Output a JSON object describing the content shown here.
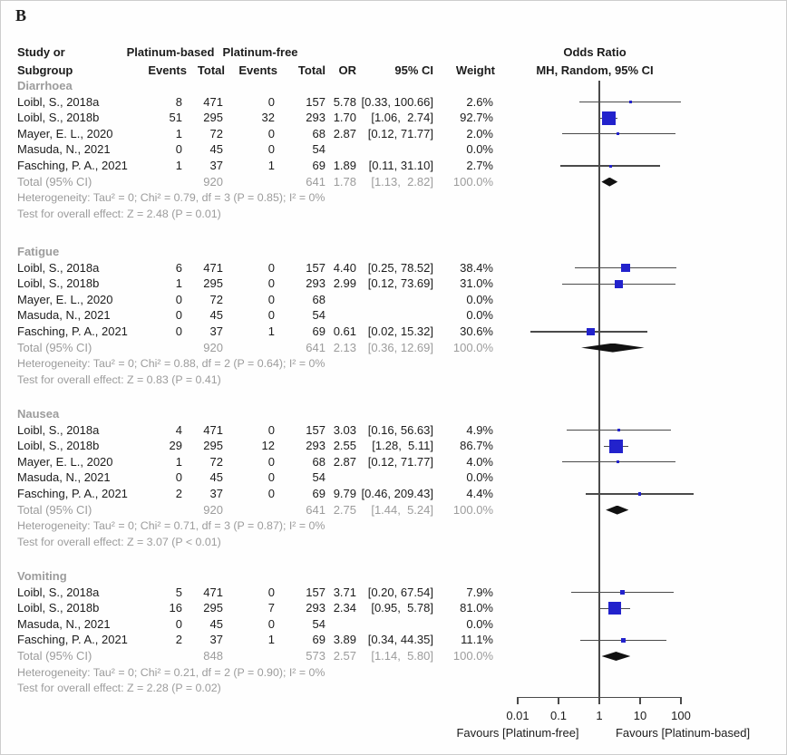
{
  "panel_label": "B",
  "table_header": {
    "study_or": "Study or",
    "subgroup": "Subgroup",
    "group_based": "Platinum-based",
    "group_free": "Platinum-free",
    "events": "Events",
    "total": "Total",
    "or": "OR",
    "ci": "95% CI",
    "weight": "Weight"
  },
  "plot_header": {
    "title": "Odds Ratio",
    "subtitle": "MH, Random, 95% CI"
  },
  "axis": {
    "tick_labels": [
      "0.01",
      "0.1",
      "1",
      "10",
      "100"
    ],
    "favours_left": "Favours [Platinum-free]",
    "favours_right": "Favours [Platinum-based]"
  },
  "colors": {
    "marker": "#2222CC",
    "summary_diamond": "#111111",
    "ci_line": "#4a4a4a",
    "muted_text": "#9C9C9C"
  },
  "chart_data": {
    "type": "forest",
    "effect_measure": "Odds Ratio (MH, Random, 95% CI)",
    "x_axis": {
      "scale": "log10",
      "ticks": [
        0.01,
        0.1,
        1,
        10,
        100
      ]
    },
    "sections": [
      {
        "name": "Diarrhoea",
        "rows": [
          {
            "study": "Loibl, S., 2018a",
            "events_based": "8",
            "total_based": "471",
            "events_free": "0",
            "total_free": "157",
            "or": 5.78,
            "ci_low": 0.33,
            "ci_high": 100.66,
            "or_text": "5.78",
            "ci_text": "[0.33, 100.66]",
            "weight": "2.6%",
            "weight_pct": 2.6
          },
          {
            "study": "Loibl, S., 2018b",
            "events_based": "51",
            "total_based": "295",
            "events_free": "32",
            "total_free": "293",
            "or": 1.7,
            "ci_low": 1.06,
            "ci_high": 2.74,
            "or_text": "1.70",
            "ci_text": "[1.06,  2.74]",
            "weight": "92.7%",
            "weight_pct": 92.7
          },
          {
            "study": "Mayer, E. L., 2020",
            "events_based": "1",
            "total_based": "72",
            "events_free": "0",
            "total_free": "68",
            "or": 2.87,
            "ci_low": 0.12,
            "ci_high": 71.77,
            "or_text": "2.87",
            "ci_text": "[0.12, 71.77]",
            "weight": "2.0%",
            "weight_pct": 2.0
          },
          {
            "study": "Masuda, N., 2021",
            "events_based": "0",
            "total_based": "45",
            "events_free": "0",
            "total_free": "54",
            "or": null,
            "ci_low": null,
            "ci_high": null,
            "or_text": "",
            "ci_text": "",
            "weight": "0.0%",
            "weight_pct": 0
          },
          {
            "study": "Fasching, P. A., 2021",
            "events_based": "1",
            "total_based": "37",
            "events_free": "1",
            "total_free": "69",
            "or": 1.89,
            "ci_low": 0.11,
            "ci_high": 31.1,
            "or_text": "1.89",
            "ci_text": "[0.11, 31.10]",
            "weight": "2.7%",
            "weight_pct": 2.7
          }
        ],
        "total": {
          "label": "Total (95% CI)",
          "total_based": "920",
          "total_free": "641",
          "or": 1.78,
          "ci_low": 1.13,
          "ci_high": 2.82,
          "or_text": "1.78",
          "ci_text": "[1.13,  2.82]",
          "weight": "100.0%"
        },
        "heterogeneity": "Heterogeneity: Tau² = 0; Chi² = 0.79, df = 3 (P = 0.85); I² = 0%",
        "overall_effect": "Test for overall effect: Z = 2.48 (P = 0.01)"
      },
      {
        "name": "Fatigue",
        "rows": [
          {
            "study": "Loibl, S., 2018a",
            "events_based": "6",
            "total_based": "471",
            "events_free": "0",
            "total_free": "157",
            "or": 4.4,
            "ci_low": 0.25,
            "ci_high": 78.52,
            "or_text": "4.40",
            "ci_text": "[0.25, 78.52]",
            "weight": "38.4%",
            "weight_pct": 38.4
          },
          {
            "study": "Loibl, S., 2018b",
            "events_based": "1",
            "total_based": "295",
            "events_free": "0",
            "total_free": "293",
            "or": 2.99,
            "ci_low": 0.12,
            "ci_high": 73.69,
            "or_text": "2.99",
            "ci_text": "[0.12, 73.69]",
            "weight": "31.0%",
            "weight_pct": 31.0
          },
          {
            "study": "Mayer, E. L., 2020",
            "events_based": "0",
            "total_based": "72",
            "events_free": "0",
            "total_free": "68",
            "or": null,
            "ci_low": null,
            "ci_high": null,
            "or_text": "",
            "ci_text": "",
            "weight": "0.0%",
            "weight_pct": 0
          },
          {
            "study": "Masuda, N., 2021",
            "events_based": "0",
            "total_based": "45",
            "events_free": "0",
            "total_free": "54",
            "or": null,
            "ci_low": null,
            "ci_high": null,
            "or_text": "",
            "ci_text": "",
            "weight": "0.0%",
            "weight_pct": 0
          },
          {
            "study": "Fasching, P. A., 2021",
            "events_based": "0",
            "total_based": "37",
            "events_free": "1",
            "total_free": "69",
            "or": 0.61,
            "ci_low": 0.02,
            "ci_high": 15.32,
            "or_text": "0.61",
            "ci_text": "[0.02, 15.32]",
            "weight": "30.6%",
            "weight_pct": 30.6
          }
        ],
        "total": {
          "label": "Total (95% CI)",
          "total_based": "920",
          "total_free": "641",
          "or": 2.13,
          "ci_low": 0.36,
          "ci_high": 12.69,
          "or_text": "2.13",
          "ci_text": "[0.36, 12.69]",
          "weight": "100.0%"
        },
        "heterogeneity": "Heterogeneity: Tau² = 0; Chi² = 0.88, df = 2 (P = 0.64); I² = 0%",
        "overall_effect": "Test for overall effect: Z = 0.83 (P = 0.41)"
      },
      {
        "name": "Nausea",
        "rows": [
          {
            "study": "Loibl, S., 2018a",
            "events_based": "4",
            "total_based": "471",
            "events_free": "0",
            "total_free": "157",
            "or": 3.03,
            "ci_low": 0.16,
            "ci_high": 56.63,
            "or_text": "3.03",
            "ci_text": "[0.16, 56.63]",
            "weight": "4.9%",
            "weight_pct": 4.9
          },
          {
            "study": "Loibl, S., 2018b",
            "events_based": "29",
            "total_based": "295",
            "events_free": "12",
            "total_free": "293",
            "or": 2.55,
            "ci_low": 1.28,
            "ci_high": 5.11,
            "or_text": "2.55",
            "ci_text": "[1.28,  5.11]",
            "weight": "86.7%",
            "weight_pct": 86.7
          },
          {
            "study": "Mayer, E. L., 2020",
            "events_based": "1",
            "total_based": "72",
            "events_free": "0",
            "total_free": "68",
            "or": 2.87,
            "ci_low": 0.12,
            "ci_high": 71.77,
            "or_text": "2.87",
            "ci_text": "[0.12, 71.77]",
            "weight": "4.0%",
            "weight_pct": 4.0
          },
          {
            "study": "Masuda, N., 2021",
            "events_based": "0",
            "total_based": "45",
            "events_free": "0",
            "total_free": "54",
            "or": null,
            "ci_low": null,
            "ci_high": null,
            "or_text": "",
            "ci_text": "",
            "weight": "0.0%",
            "weight_pct": 0
          },
          {
            "study": "Fasching, P. A., 2021",
            "events_based": "2",
            "total_based": "37",
            "events_free": "0",
            "total_free": "69",
            "or": 9.79,
            "ci_low": 0.46,
            "ci_high": 209.43,
            "or_text": "9.79",
            "ci_text": "[0.46, 209.43]",
            "weight": "4.4%",
            "weight_pct": 4.4
          }
        ],
        "total": {
          "label": "Total (95% CI)",
          "total_based": "920",
          "total_free": "641",
          "or": 2.75,
          "ci_low": 1.44,
          "ci_high": 5.24,
          "or_text": "2.75",
          "ci_text": "[1.44,  5.24]",
          "weight": "100.0%"
        },
        "heterogeneity": "Heterogeneity: Tau² = 0; Chi² = 0.71, df = 3 (P = 0.87); I² = 0%",
        "overall_effect": "Test for overall effect: Z = 3.07 (P < 0.01)"
      },
      {
        "name": "Vomiting",
        "rows": [
          {
            "study": "Loibl, S., 2018a",
            "events_based": "5",
            "total_based": "471",
            "events_free": "0",
            "total_free": "157",
            "or": 3.71,
            "ci_low": 0.2,
            "ci_high": 67.54,
            "or_text": "3.71",
            "ci_text": "[0.20, 67.54]",
            "weight": "7.9%",
            "weight_pct": 7.9
          },
          {
            "study": "Loibl, S., 2018b",
            "events_based": "16",
            "total_based": "295",
            "events_free": "7",
            "total_free": "293",
            "or": 2.34,
            "ci_low": 0.95,
            "ci_high": 5.78,
            "or_text": "2.34",
            "ci_text": "[0.95,  5.78]",
            "weight": "81.0%",
            "weight_pct": 81.0
          },
          {
            "study": "Masuda, N., 2021",
            "events_based": "0",
            "total_based": "45",
            "events_free": "0",
            "total_free": "54",
            "or": null,
            "ci_low": null,
            "ci_high": null,
            "or_text": "",
            "ci_text": "",
            "weight": "0.0%",
            "weight_pct": 0
          },
          {
            "study": "Fasching, P. A., 2021",
            "events_based": "2",
            "total_based": "37",
            "events_free": "1",
            "total_free": "69",
            "or": 3.89,
            "ci_low": 0.34,
            "ci_high": 44.35,
            "or_text": "3.89",
            "ci_text": "[0.34, 44.35]",
            "weight": "11.1%",
            "weight_pct": 11.1
          }
        ],
        "total": {
          "label": "Total (95% CI)",
          "total_based": "848",
          "total_free": "573",
          "or": 2.57,
          "ci_low": 1.14,
          "ci_high": 5.8,
          "or_text": "2.57",
          "ci_text": "[1.14,  5.80]",
          "weight": "100.0%"
        },
        "heterogeneity": "Heterogeneity: Tau² = 0; Chi² = 0.21, df = 2 (P = 0.90); I² = 0%",
        "overall_effect": "Test for overall effect: Z = 2.28 (P = 0.02)"
      }
    ]
  }
}
